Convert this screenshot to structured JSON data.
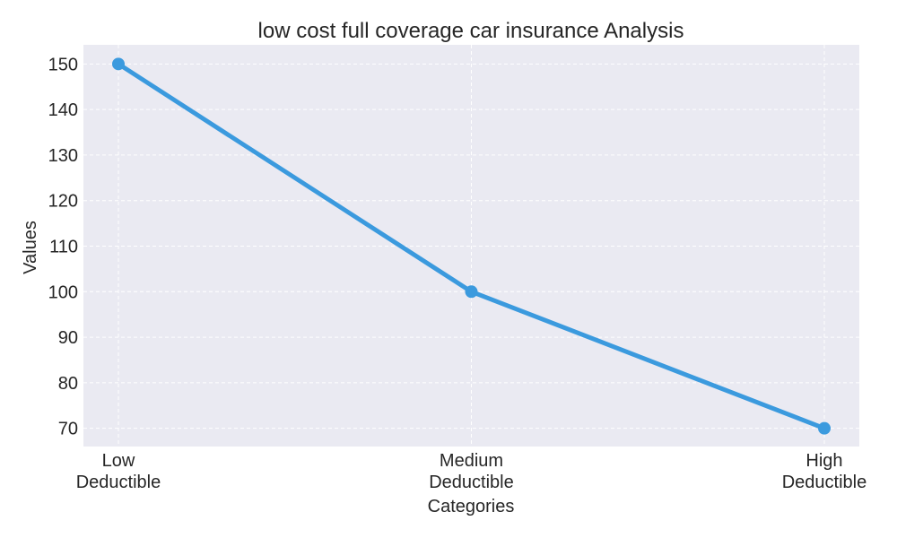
{
  "chart_data": {
    "type": "line",
    "title": "low cost full coverage car insurance Analysis",
    "xlabel": "Categories",
    "ylabel": "Values",
    "categories": [
      [
        "Low",
        "Deductible"
      ],
      [
        "Medium",
        "Deductible"
      ],
      [
        "High",
        "Deductible"
      ]
    ],
    "series": [
      {
        "name": "Values",
        "values": [
          150,
          100,
          70
        ],
        "color": "#3b9ade"
      }
    ],
    "ylim": [
      66,
      154.2
    ],
    "yticks": [
      70,
      80,
      90,
      100,
      110,
      120,
      130,
      140,
      150
    ],
    "grid": true,
    "legend": "none",
    "plot_background": "#eaeaf2",
    "grid_color": "#ffffff"
  }
}
